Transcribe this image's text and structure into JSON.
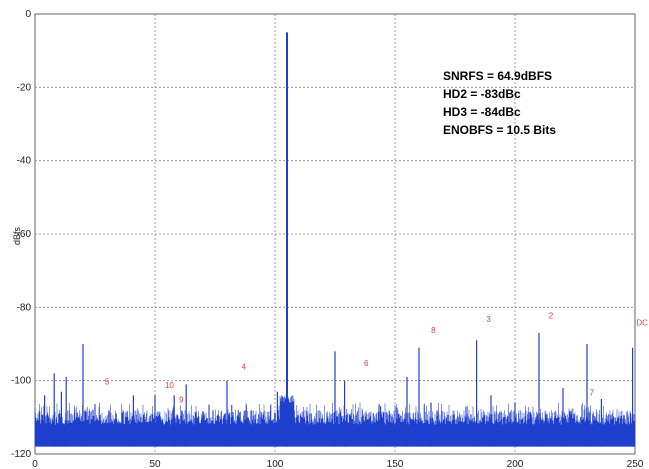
{
  "chart_data": {
    "type": "line",
    "title": "",
    "xlabel": "",
    "ylabel": "dBfs",
    "xlim": [
      0,
      250
    ],
    "ylim": [
      -120,
      0
    ],
    "xticks": [
      0,
      50,
      100,
      150,
      200,
      250
    ],
    "yticks": [
      0,
      -20,
      -40,
      -60,
      -80,
      -100,
      -120
    ],
    "grid": true,
    "line_color": "#1f3fcf",
    "harmonic_label_color": "#e23b3b",
    "noise_floor_dbfs": [
      -118,
      -108
    ],
    "fundamental": {
      "x": 105,
      "y": -5
    },
    "spurs": [
      {
        "x": 4,
        "y": -104
      },
      {
        "x": 8,
        "y": -98
      },
      {
        "x": 11,
        "y": -103
      },
      {
        "x": 13,
        "y": -99
      },
      {
        "x": 20,
        "y": -90
      },
      {
        "x": 41,
        "y": -104
      },
      {
        "x": 50,
        "y": -104
      },
      {
        "x": 58,
        "y": -104
      },
      {
        "x": 63,
        "y": -101
      },
      {
        "x": 80,
        "y": -100
      },
      {
        "x": 101,
        "y": -103
      },
      {
        "x": 125,
        "y": -92
      },
      {
        "x": 129,
        "y": -100
      },
      {
        "x": 144,
        "y": -107
      },
      {
        "x": 155,
        "y": -99
      },
      {
        "x": 160,
        "y": -91
      },
      {
        "x": 165,
        "y": -106
      },
      {
        "x": 184,
        "y": -89
      },
      {
        "x": 190,
        "y": -104
      },
      {
        "x": 200,
        "y": -106
      },
      {
        "x": 210,
        "y": -87
      },
      {
        "x": 220,
        "y": -102
      },
      {
        "x": 230,
        "y": -90
      },
      {
        "x": 236,
        "y": -105
      },
      {
        "x": 249,
        "y": -91
      }
    ],
    "harmonic_labels": [
      {
        "text": "5",
        "x": 30,
        "y": -101
      },
      {
        "text": "10",
        "x": 56,
        "y": -102
      },
      {
        "text": "9",
        "x": 61,
        "y": -106
      },
      {
        "text": "4",
        "x": 87,
        "y": -97
      },
      {
        "text": "6",
        "x": 138,
        "y": -96
      },
      {
        "text": "8",
        "x": 166,
        "y": -87
      },
      {
        "text": "3",
        "x": 189,
        "y": -84
      },
      {
        "text": "2",
        "x": 215,
        "y": -83
      },
      {
        "text": "7",
        "x": 232,
        "y": -104
      },
      {
        "text": "DC",
        "x": 253,
        "y": -85
      }
    ],
    "annotations": [
      "SNRFS = 64.9dBFS",
      "HD2 = -83dBc",
      "HD3 = -84dBc",
      "ENOBFS = 10.5 Bits"
    ]
  }
}
